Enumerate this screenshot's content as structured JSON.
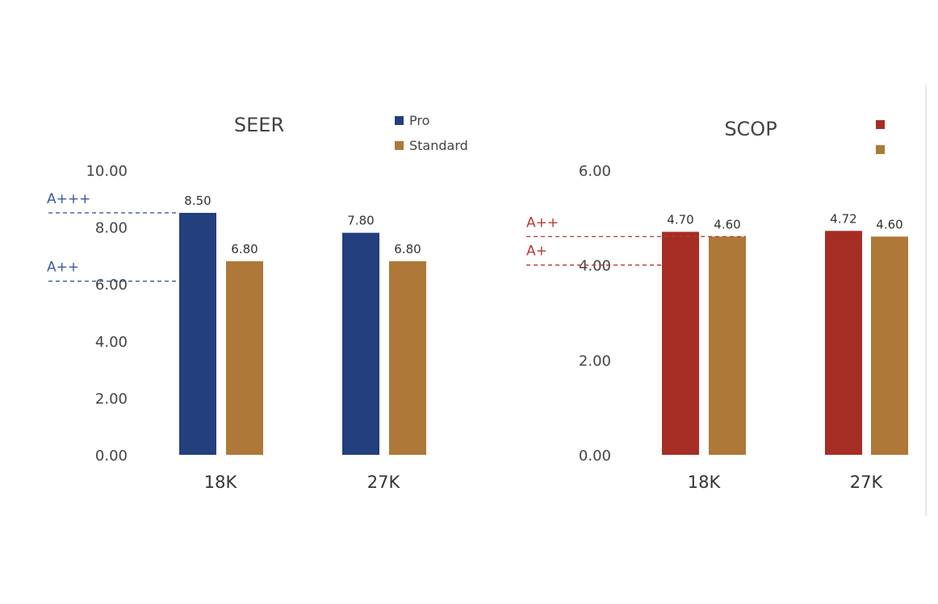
{
  "colors": {
    "pro_seer": "#233f7e",
    "standard": "#ad7838",
    "pro_scop": "#a62d24",
    "axis_text": "#444444",
    "seer_ref": "#3a5a9a",
    "scop_ref": "#b23a33",
    "divider": "#e4e9f2"
  },
  "chart_data": [
    {
      "type": "bar",
      "title": "SEER",
      "categories": [
        "18K",
        "27K"
      ],
      "series": [
        {
          "name": "Pro",
          "values": [
            8.5,
            7.8
          ],
          "labels": [
            "8.50",
            "7.80"
          ]
        },
        {
          "name": "Standard",
          "values": [
            6.8,
            6.8
          ],
          "labels": [
            "6.80",
            "6.80"
          ]
        }
      ],
      "ylim": [
        0,
        10
      ],
      "yticks": [
        0,
        2,
        4,
        6,
        8,
        10
      ],
      "ytick_labels": [
        "0.00",
        "2.00",
        "4.00",
        "6.00",
        "8.00",
        "10.00"
      ],
      "reference_lines": [
        {
          "label": "A+++",
          "value": 8.5
        },
        {
          "label": "A++",
          "value": 6.1
        }
      ],
      "legend": "top-right",
      "grid": false
    },
    {
      "type": "bar",
      "title": "SCOP",
      "categories": [
        "18K",
        "27K"
      ],
      "series": [
        {
          "name": "",
          "values": [
            4.7,
            4.72
          ],
          "labels": [
            "4.70",
            "4.72"
          ]
        },
        {
          "name": "",
          "values": [
            4.6,
            4.6
          ],
          "labels": [
            "4.60",
            "4.60"
          ]
        }
      ],
      "ylim": [
        0,
        6
      ],
      "yticks": [
        0,
        2,
        4,
        6
      ],
      "ytick_labels": [
        "0.00",
        "2.00",
        "4.00",
        "6.00"
      ],
      "reference_lines": [
        {
          "label": "A++",
          "value": 4.6
        },
        {
          "label": "A+",
          "value": 4.0
        }
      ],
      "legend": "top-right",
      "grid": false
    }
  ]
}
